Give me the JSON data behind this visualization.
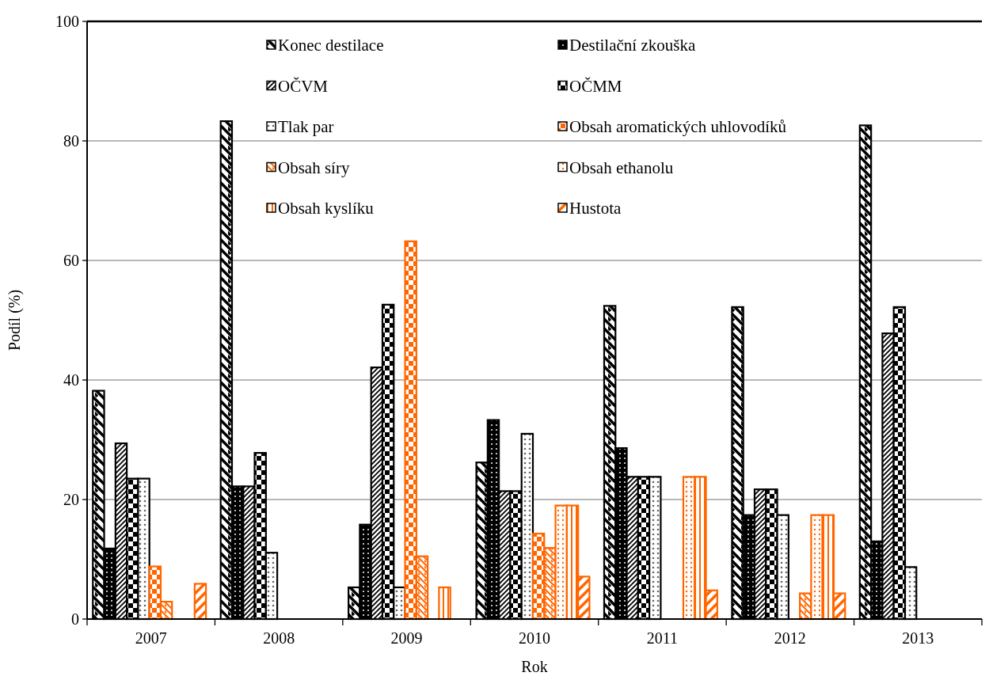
{
  "chart_data": {
    "type": "bar",
    "xlabel": "Rok",
    "ylabel": "Podíl (%)",
    "categories": [
      "2007",
      "2008",
      "2009",
      "2010",
      "2011",
      "2012",
      "2013"
    ],
    "series": [
      {
        "name": "Konec destilace",
        "color": "#000000",
        "values": [
          38.2,
          83.3,
          5.3,
          26.2,
          52.4,
          52.2,
          82.6
        ]
      },
      {
        "name": "Destilační zkouška",
        "color": "#000000",
        "values": [
          11.8,
          22.2,
          15.8,
          33.3,
          28.6,
          17.4,
          13.0
        ]
      },
      {
        "name": "OČVM",
        "color": "#000000",
        "values": [
          29.4,
          22.2,
          42.1,
          21.4,
          23.8,
          21.7,
          47.8
        ]
      },
      {
        "name": "OČMM",
        "color": "#000000",
        "values": [
          23.5,
          27.8,
          52.6,
          21.4,
          23.8,
          21.7,
          52.2
        ]
      },
      {
        "name": "Tlak par",
        "color": "#000000",
        "values": [
          23.5,
          11.1,
          5.3,
          31.0,
          23.8,
          17.4,
          8.7
        ]
      },
      {
        "name": "Obsah aromatických uhlovodíků",
        "color": "#ff6600",
        "values": [
          8.8,
          0,
          63.2,
          14.3,
          0,
          0,
          0
        ]
      },
      {
        "name": "Obsah síry",
        "color": "#ff6600",
        "values": [
          2.9,
          0,
          10.5,
          11.9,
          0,
          4.3,
          0
        ]
      },
      {
        "name": "Obsah ethanolu",
        "color": "#ff6600",
        "values": [
          0,
          0,
          0,
          19.0,
          23.8,
          17.4,
          0
        ]
      },
      {
        "name": "Obsah kyslíku",
        "color": "#ff6600",
        "values": [
          0,
          0,
          5.3,
          19.0,
          23.8,
          17.4,
          0
        ]
      },
      {
        "name": "Hustota",
        "color": "#ff6600",
        "values": [
          5.9,
          0,
          0,
          7.1,
          4.8,
          4.3,
          0
        ]
      }
    ],
    "ylim": [
      0,
      100
    ],
    "yticks": [
      0,
      20,
      40,
      60,
      80,
      100
    ],
    "grid": "y",
    "legend": "top"
  }
}
